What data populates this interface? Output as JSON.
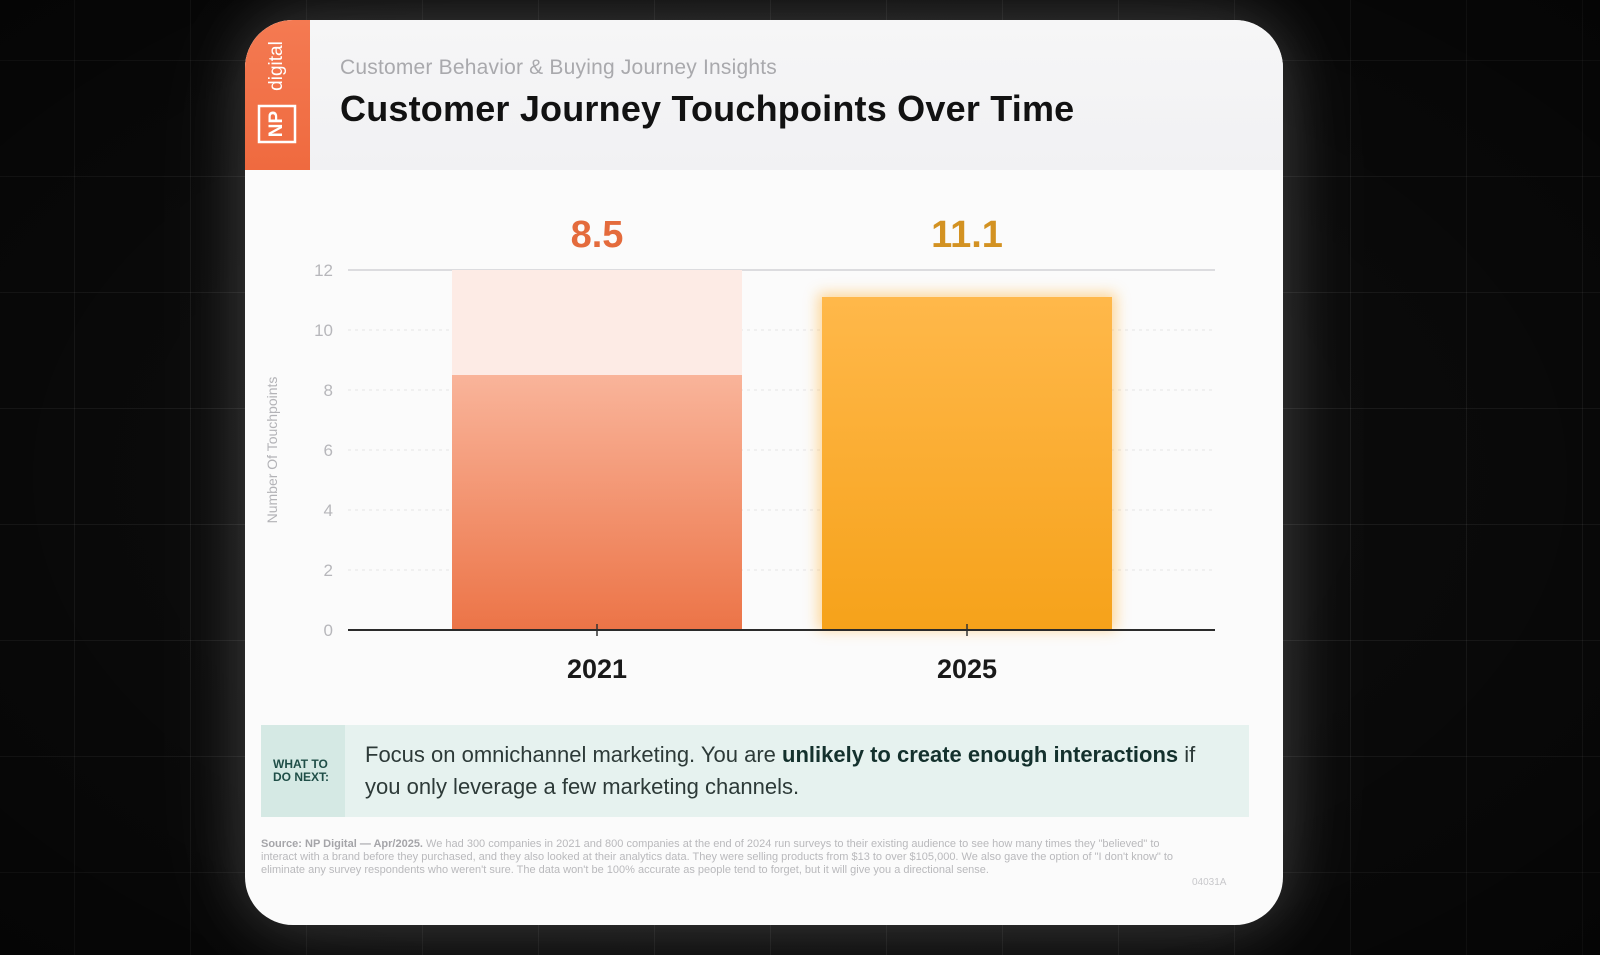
{
  "brand": {
    "logo_text": "NP digital"
  },
  "header": {
    "subtitle": "Customer Behavior & Buying Journey Insights",
    "title": "Customer Journey Touchpoints Over Time"
  },
  "chart_data": {
    "type": "bar",
    "categories": [
      "2021",
      "2025"
    ],
    "values": [
      8.5,
      11.1
    ],
    "value_labels": [
      "8.5",
      "11.1"
    ],
    "ylabel": "Number Of Touchpoints",
    "ylim": [
      0,
      12
    ],
    "yticks": [
      0,
      2,
      4,
      6,
      8,
      10,
      12
    ],
    "grid": true,
    "colors": {
      "2021_top": "#f9b49a",
      "2021_bottom": "#ec7447",
      "2021_label": "#e46b3c",
      "2021_ghost": "#fdebe5",
      "2025_top": "#ffb84a",
      "2025_bottom": "#f6a21a",
      "2025_label": "#d39222"
    }
  },
  "next_steps": {
    "label_line1": "WHAT TO",
    "label_line2": "DO NEXT:",
    "text_before": "Focus on omnichannel marketing. You are ",
    "text_bold": "unlikely to create enough interactions",
    "text_after": " if you only leverage a few marketing channels."
  },
  "footer": {
    "source_bold": "Source: NP Digital — Apr/2025.",
    "source_text": " We had 300 companies in 2021 and 800 companies at the end of 2024 run surveys to their existing audience to see how many times they \"believed\" to interact with a brand before they purchased, and they also looked at their analytics data. They were selling products from $13 to over $105,000. We also gave the option of \"I don't know\" to eliminate any survey respondents who weren't sure. The data won't be 100% accurate as people tend to forget, but it will give you a directional sense.",
    "code": "04031A"
  }
}
